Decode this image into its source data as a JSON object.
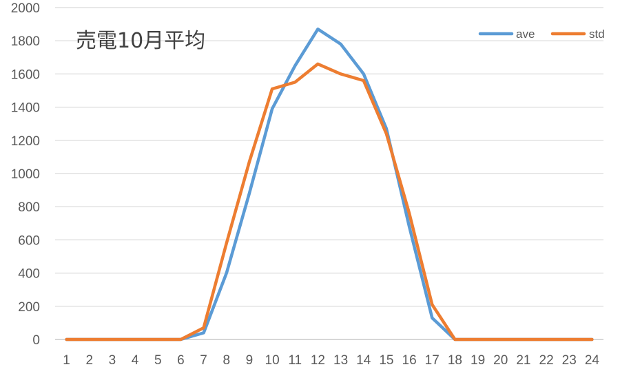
{
  "chart_data": {
    "type": "line",
    "title": "売電10月平均",
    "xlabel": "",
    "ylabel": "",
    "x": [
      1,
      2,
      3,
      4,
      5,
      6,
      7,
      8,
      9,
      10,
      11,
      12,
      13,
      14,
      15,
      16,
      17,
      18,
      19,
      20,
      21,
      22,
      23,
      24
    ],
    "ylim": [
      0,
      2000
    ],
    "yticks": [
      0,
      200,
      400,
      600,
      800,
      1000,
      1200,
      1400,
      1600,
      1800,
      2000
    ],
    "grid": true,
    "legend_position": "top-right",
    "series": [
      {
        "name": "ave",
        "color": "#5B9BD5",
        "values": [
          0,
          0,
          0,
          0,
          0,
          0,
          40,
          400,
          880,
          1390,
          1650,
          1870,
          1780,
          1600,
          1270,
          680,
          130,
          0,
          0,
          0,
          0,
          0,
          0,
          0
        ]
      },
      {
        "name": "std",
        "color": "#ED7D31",
        "values": [
          0,
          0,
          0,
          0,
          0,
          0,
          70,
          580,
          1070,
          1510,
          1550,
          1660,
          1600,
          1560,
          1240,
          760,
          210,
          0,
          0,
          0,
          0,
          0,
          0,
          0
        ]
      }
    ]
  }
}
